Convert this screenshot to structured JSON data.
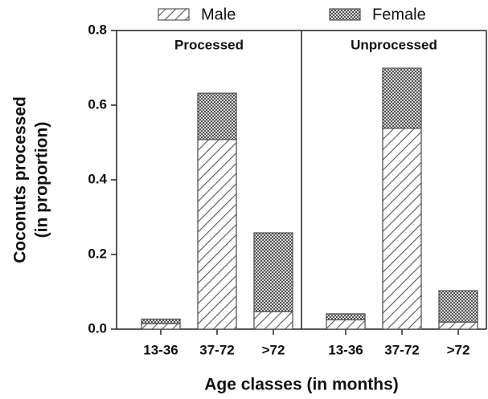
{
  "chart_data": {
    "type": "stacked_bar",
    "panel_titles": [
      "Processed",
      "Unprocessed"
    ],
    "categories": [
      "13-36",
      "37-72",
      ">72",
      "13-36",
      "37-72",
      ">72"
    ],
    "series": [
      {
        "name": "Male",
        "color": "#555555",
        "pattern": "hatch",
        "values": [
          0.015,
          0.508,
          0.047,
          0.025,
          0.538,
          0.019
        ]
      },
      {
        "name": "Female",
        "color": "#555555",
        "pattern": "dots",
        "values": [
          0.012,
          0.124,
          0.211,
          0.016,
          0.161,
          0.084
        ]
      }
    ],
    "ylabel": [
      "Coconuts processed",
      "(in proportion)"
    ],
    "xlabel": "Age classes (in months)",
    "ylim": [
      0,
      0.8
    ],
    "yticks": [
      {
        "value": 0,
        "label": "0.0"
      },
      0.2,
      0.4,
      0.6,
      0.8
    ]
  }
}
